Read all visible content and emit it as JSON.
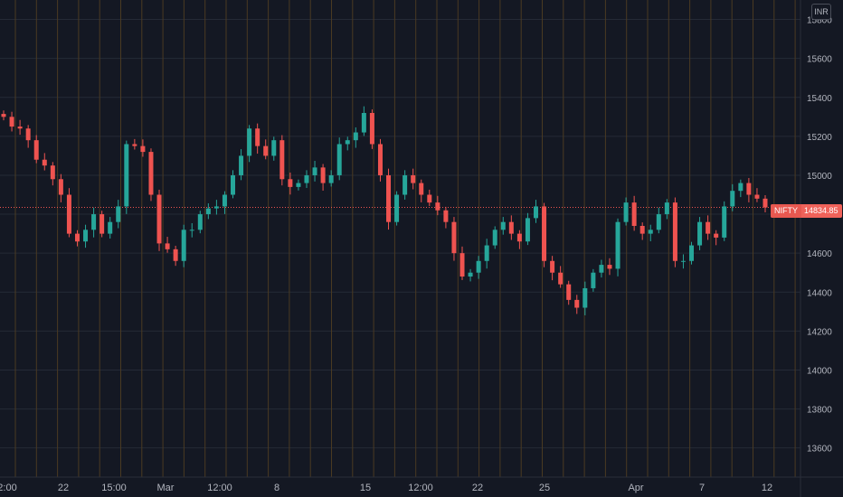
{
  "currency": "INR",
  "symbol": "NIFTY",
  "last_price": "14834.85",
  "colors": {
    "background": "#141823",
    "grid": "#252a36",
    "session_line": "#4a3a22",
    "up": "#26a69a",
    "down": "#ef5350",
    "price_line": "#ef5350",
    "text": "#b2b5be"
  },
  "y_axis": {
    "ticks": [
      "15800",
      "15600",
      "15400",
      "15200",
      "15000",
      "14800",
      "14600",
      "14400",
      "14200",
      "14000",
      "13800",
      "13600"
    ],
    "range": [
      13450,
      15900
    ]
  },
  "x_axis": {
    "labels": [
      "2:00",
      "22",
      "15:00",
      "Mar",
      "12:00",
      "8",
      "15",
      "12:00",
      "22",
      "25",
      "Apr",
      "7",
      "12"
    ]
  },
  "chart_data": {
    "type": "candlestick",
    "series_name": "NIFTY",
    "ylim": [
      13450,
      15900
    ],
    "close_path": [
      15300,
      15250,
      15240,
      15180,
      15080,
      15050,
      14980,
      14900,
      14700,
      14660,
      14720,
      14800,
      14700,
      14760,
      14840,
      15160,
      15150,
      15120,
      14900,
      14650,
      14620,
      14560,
      14720,
      14720,
      14800,
      14830,
      14840,
      14900,
      15000,
      15100,
      15240,
      15150,
      15100,
      15180,
      14980,
      14940,
      14960,
      15000,
      15040,
      14960,
      15000,
      15160,
      15180,
      15220,
      15320,
      15160,
      15000,
      14760,
      14900,
      15000,
      14960,
      14900,
      14860,
      14820,
      14760,
      14600,
      14480,
      14500,
      14560,
      14640,
      14720,
      14760,
      14700,
      14660,
      14780,
      14840,
      14560,
      14500,
      14440,
      14360,
      14320,
      14420,
      14500,
      14540,
      14520,
      14760,
      14860,
      14740,
      14700,
      14720,
      14800,
      14860,
      14560,
      14560,
      14640,
      14760,
      14700,
      14680,
      14840,
      14920,
      14960,
      14900,
      14880,
      14834.85
    ],
    "last_value": 14834.85
  }
}
